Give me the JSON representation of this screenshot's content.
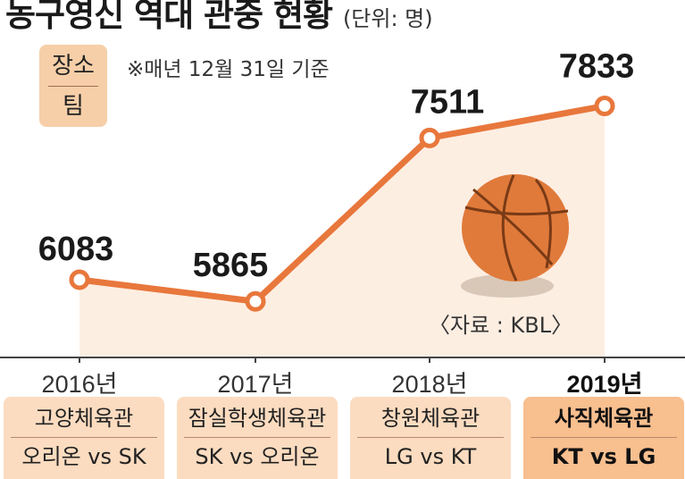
{
  "header": {
    "title": "농구영신 역대 관중 현황",
    "unit": "(단위: 명)"
  },
  "legend": {
    "line1": "장소",
    "line2": "팀"
  },
  "note": "※매년 12월 31일 기준",
  "source": "〈자료 : KBL〉",
  "colors": {
    "accent": "#e8773c",
    "area_fill": "#fdeee2",
    "legend_bg": "#f6cfa8",
    "venue_bg": "#fbdcc0",
    "venue_highlight_bg": "#f8bf8f",
    "ball": "#e07a3a",
    "ball_seam": "#7a3a16"
  },
  "chart_data": {
    "type": "line",
    "categories": [
      "2016년",
      "2017년",
      "2018년",
      "2019년"
    ],
    "values": [
      6083,
      5865,
      7511,
      7833
    ],
    "data_labels": [
      "6083",
      "5865",
      "7511",
      "7833"
    ],
    "highlight_index": 3,
    "ylim": [
      5300,
      8000
    ]
  },
  "venues": [
    {
      "place": "고양체육관",
      "teams": "오리온 vs SK"
    },
    {
      "place": "잠실학생체육관",
      "teams": "SK vs 오리온"
    },
    {
      "place": "창원체육관",
      "teams": "LG vs KT"
    },
    {
      "place": "사직체육관",
      "teams": "KT vs LG"
    }
  ]
}
